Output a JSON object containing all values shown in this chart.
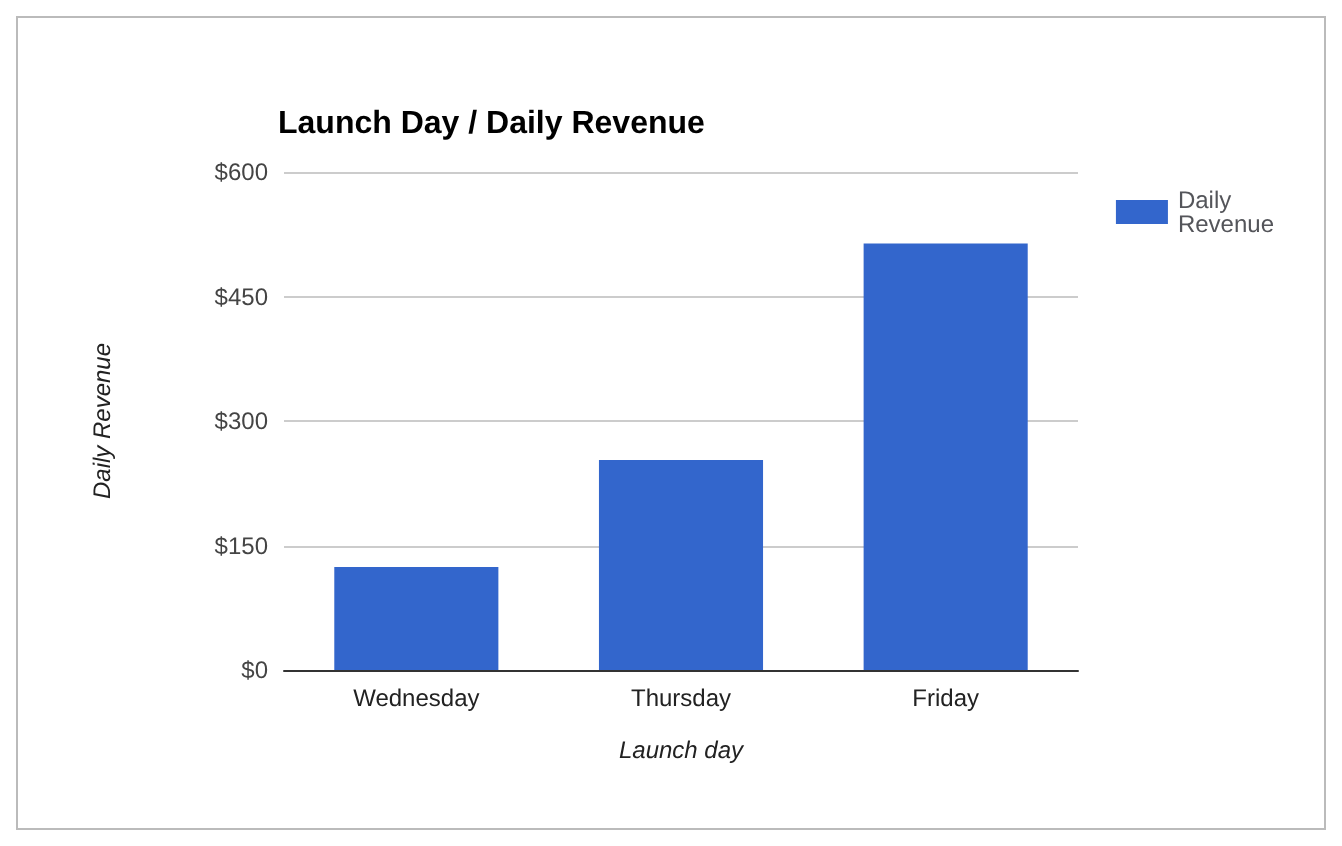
{
  "chart_data": {
    "type": "bar",
    "title": "Launch Day / Daily Revenue",
    "xlabel": "Launch day",
    "ylabel": "Daily Revenue",
    "categories": [
      "Wednesday",
      "Thursday",
      "Friday"
    ],
    "series": [
      {
        "name": "Daily Revenue",
        "color": "#3366cc",
        "values": [
          124,
          253,
          514
        ]
      }
    ],
    "ylim": [
      0,
      600
    ],
    "yticks": [
      {
        "value": 0,
        "label": "$0"
      },
      {
        "value": 150,
        "label": "$150"
      },
      {
        "value": 300,
        "label": "$300"
      },
      {
        "value": 450,
        "label": "$450"
      },
      {
        "value": 600,
        "label": "$600"
      }
    ],
    "grid": "y",
    "legend": "right"
  }
}
